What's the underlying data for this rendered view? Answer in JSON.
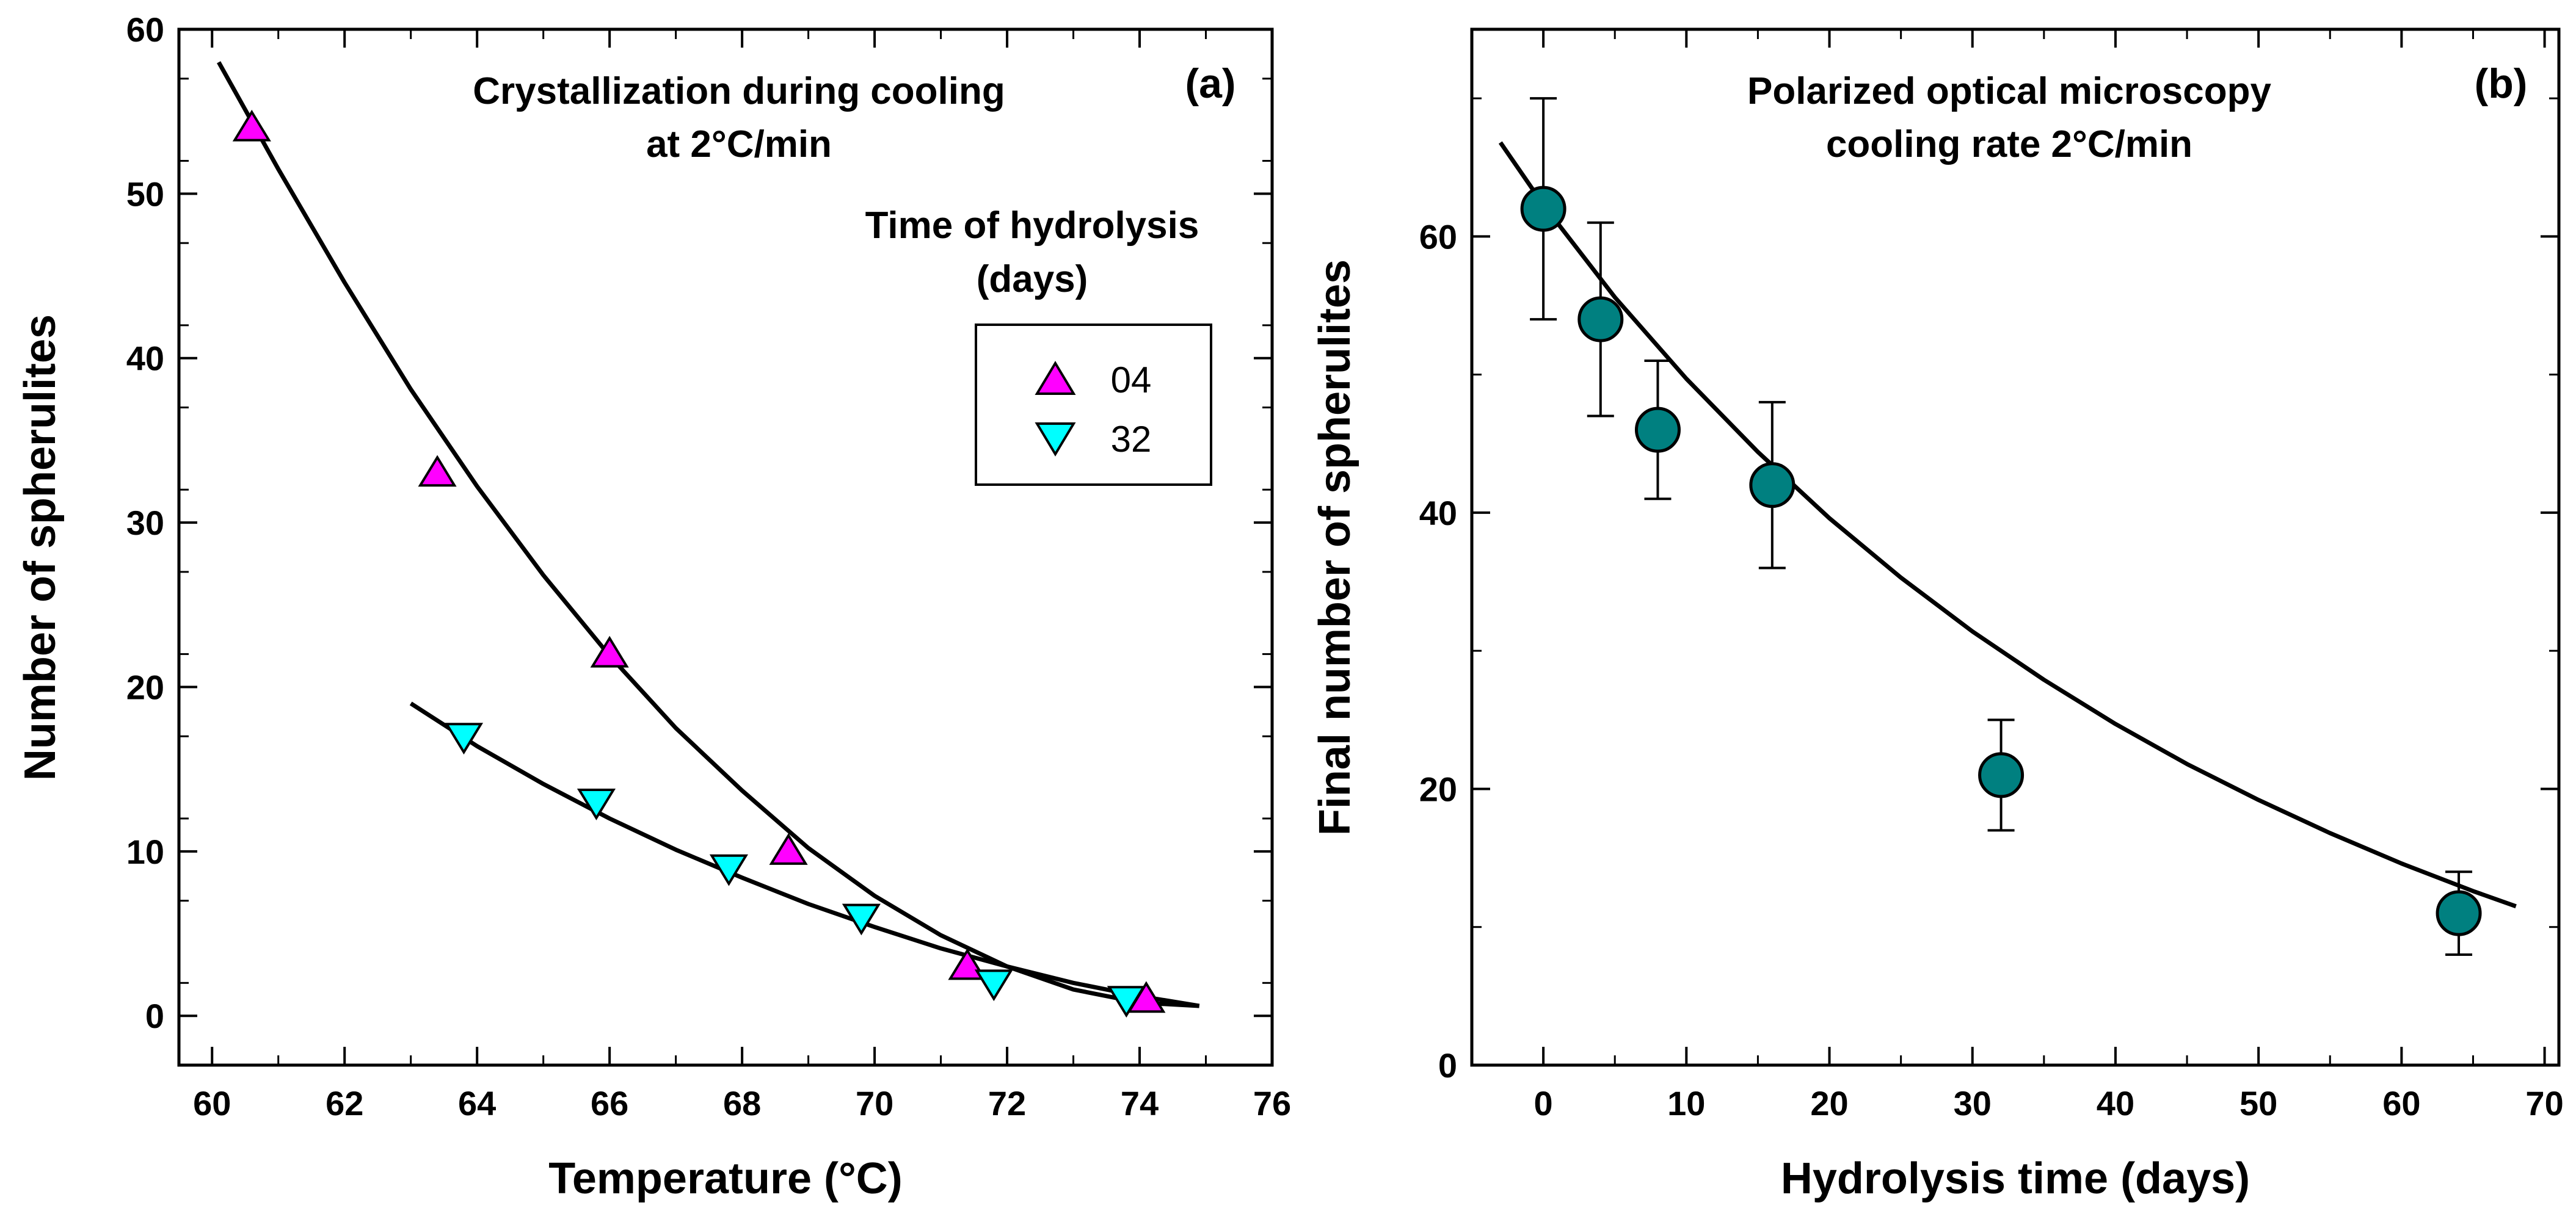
{
  "chart_data": [
    {
      "type": "scatter",
      "panel_label": "(a)",
      "annotation": [
        "Crystallization during cooling",
        "at 2°C/min"
      ],
      "legend_title": [
        "Time of hydrolysis",
        "(days)"
      ],
      "legend_placement": "top-right",
      "xlabel": "Temperature (°C)",
      "ylabel": "Number of spherulites",
      "xlim": [
        59.5,
        76
      ],
      "ylim": [
        -3,
        60
      ],
      "xticks": [
        60,
        62,
        64,
        66,
        68,
        70,
        72,
        74,
        76
      ],
      "yticks": [
        0,
        10,
        20,
        30,
        40,
        50,
        60
      ],
      "grid": false,
      "series": [
        {
          "name": "04",
          "marker": "triangle-up",
          "color": "#ff00ff",
          "x": [
            60.6,
            63.4,
            66.0,
            68.7,
            71.4,
            74.1
          ],
          "y": [
            54,
            33,
            22,
            10,
            3,
            1
          ]
        },
        {
          "name": "32",
          "marker": "triangle-down",
          "color": "#00ffff",
          "x": [
            63.8,
            65.8,
            67.8,
            69.8,
            71.8,
            73.8
          ],
          "y": [
            17,
            13,
            9,
            6,
            2,
            1
          ]
        }
      ],
      "fit_curves": [
        {
          "series": "04",
          "x": [
            60.1,
            61.0,
            62.0,
            63.0,
            64.0,
            65.0,
            66.0,
            67.0,
            68.0,
            69.0,
            70.0,
            71.0,
            72.0,
            73.0,
            74.0,
            74.9
          ],
          "y": [
            58.0,
            51.5,
            44.6,
            38.1,
            32.2,
            26.8,
            21.9,
            17.5,
            13.7,
            10.2,
            7.3,
            4.9,
            3.0,
            1.6,
            0.8,
            0.6
          ]
        },
        {
          "series": "32",
          "x": [
            63.0,
            64.0,
            65.0,
            66.0,
            67.0,
            68.0,
            69.0,
            70.0,
            71.0,
            72.0,
            73.0,
            74.0,
            74.9
          ],
          "y": [
            19.0,
            16.4,
            14.1,
            12.0,
            10.1,
            8.4,
            6.8,
            5.4,
            4.1,
            3.0,
            2.0,
            1.2,
            0.6
          ]
        }
      ]
    },
    {
      "type": "scatter",
      "panel_label": "(b)",
      "annotation": [
        "Polarized optical microscopy",
        "cooling rate 2°C/min"
      ],
      "xlabel": "Hydrolysis time (days)",
      "ylabel": "Final number of spherulites",
      "xlim": [
        -5,
        71
      ],
      "ylim": [
        0,
        75
      ],
      "xticks": [
        0,
        10,
        20,
        30,
        40,
        50,
        60,
        70
      ],
      "yticks": [
        0,
        20,
        40,
        60
      ],
      "grid": false,
      "series": [
        {
          "marker": "circle",
          "color": "#008080",
          "x": [
            0,
            4,
            8,
            16,
            32,
            64
          ],
          "y": [
            62,
            54,
            46,
            42,
            21,
            11
          ],
          "err_low": [
            54,
            47,
            41,
            36,
            17,
            8
          ],
          "err_high": [
            70,
            61,
            51,
            48,
            25,
            14
          ]
        }
      ],
      "fit_curves": [
        {
          "x": [
            -3,
            0,
            5,
            10,
            15,
            20,
            25,
            30,
            35,
            40,
            45,
            50,
            55,
            60,
            65,
            68
          ],
          "y": [
            66.8,
            62.3,
            55.6,
            49.7,
            44.4,
            39.6,
            35.3,
            31.4,
            27.9,
            24.7,
            21.8,
            19.2,
            16.8,
            14.6,
            12.6,
            11.5
          ]
        }
      ]
    }
  ]
}
